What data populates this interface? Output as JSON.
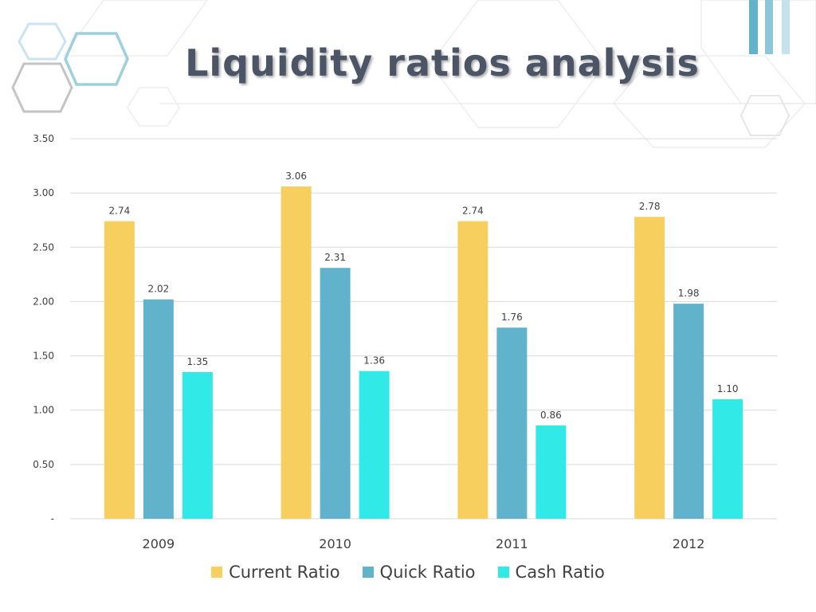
{
  "title": "Liquidity ratios analysis",
  "colors": {
    "current": "#f7cf5e",
    "quick": "#61b2cb",
    "cash": "#31e9e6",
    "grid": "#d9d9d9",
    "title": "#4b5566"
  },
  "chart_data": {
    "type": "bar",
    "title": "",
    "xlabel": "",
    "ylabel": "",
    "ylim": [
      0,
      3.5
    ],
    "yticks": [
      0,
      0.5,
      1.0,
      1.5,
      2.0,
      2.5,
      3.0,
      3.5
    ],
    "ytick_labels": [
      "-",
      "0.50",
      "1.00",
      "1.50",
      "2.00",
      "2.50",
      "3.00",
      "3.50"
    ],
    "grid": true,
    "legend": "bottom",
    "categories": [
      "2009",
      "2010",
      "2011",
      "2012"
    ],
    "series": [
      {
        "name": "Current Ratio",
        "values": [
          2.74,
          3.06,
          2.74,
          2.78
        ],
        "labels": [
          "2.74",
          "3.06",
          "2.74",
          "2.78"
        ]
      },
      {
        "name": "Quick Ratio",
        "values": [
          2.02,
          2.31,
          1.76,
          1.98
        ],
        "labels": [
          "2.02",
          "2.31",
          "1.76",
          "1.98"
        ]
      },
      {
        "name": "Cash Ratio",
        "values": [
          1.35,
          1.36,
          0.86,
          1.1
        ],
        "labels": [
          "1.35",
          "1.36",
          "0.86",
          "1.10"
        ]
      }
    ]
  }
}
